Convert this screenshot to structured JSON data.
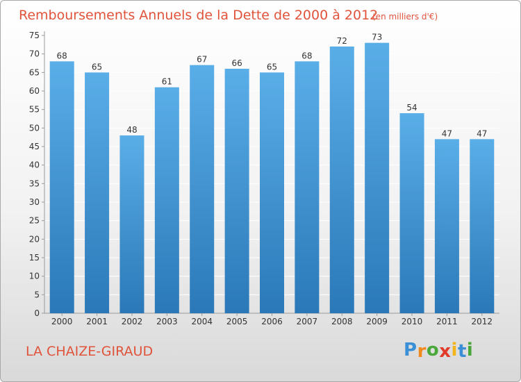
{
  "chart_data": {
    "type": "bar",
    "title": "Remboursements Annuels de la Dette de 2000 à 2012",
    "subtitle": "(en milliers d'€)",
    "categories": [
      "2000",
      "2001",
      "2002",
      "2003",
      "2004",
      "2005",
      "2006",
      "2007",
      "2008",
      "2009",
      "2010",
      "2011",
      "2012"
    ],
    "values": [
      68,
      65,
      48,
      61,
      67,
      66,
      65,
      68,
      72,
      73,
      54,
      47,
      47
    ],
    "ylim": [
      0,
      75
    ],
    "yticks": [
      0,
      5,
      10,
      15,
      20,
      25,
      30,
      35,
      40,
      45,
      50,
      55,
      60,
      65,
      70,
      75
    ],
    "xlabel": "",
    "ylabel": "",
    "grid": true,
    "bar_color_top": "#5aaee8",
    "bar_color_bottom": "#2a78b8"
  },
  "commune": "LA CHAIZE-GIRAUD",
  "logo": {
    "letters": [
      "P",
      "r",
      "o",
      "x",
      "i",
      "t",
      "i"
    ],
    "colors": [
      "#3a8fd6",
      "#f08a1c",
      "#4aa83a",
      "#e23a2a",
      "#f2b418",
      "#3a8fd6",
      "#4aa83a"
    ]
  },
  "colors": {
    "title": "#e0533a"
  }
}
